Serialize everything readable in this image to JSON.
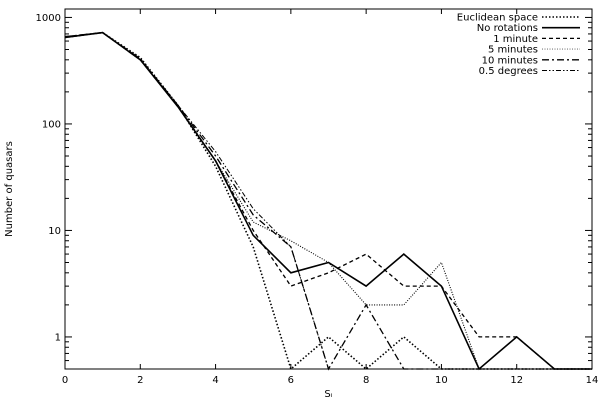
{
  "chart_data": {
    "type": "line",
    "xlabel": "Sᵢ",
    "ylabel": "Number of quasars",
    "x_ticks": [
      0,
      2,
      4,
      6,
      8,
      10,
      12,
      14
    ],
    "y_ticks": [
      1,
      10,
      100,
      1000
    ],
    "y_tick_labels": [
      "1",
      "10",
      "100",
      "1000"
    ],
    "xlim": [
      0,
      14
    ],
    "ylim": [
      0.5,
      1200
    ],
    "y_scale": "log",
    "legend_position": "top-right",
    "series": [
      {
        "name": "Euclidean space",
        "style": "dot-fine",
        "x": [
          0,
          1,
          2,
          3,
          4,
          5,
          6,
          7,
          8,
          9,
          10,
          11,
          12,
          13,
          14
        ],
        "y": [
          650,
          720,
          420,
          150,
          40,
          7,
          0.5,
          1,
          0.5,
          1,
          0.5,
          0.5,
          0.5,
          0.5,
          0.5
        ]
      },
      {
        "name": "No rotations",
        "style": "solid",
        "x": [
          0,
          1,
          2,
          3,
          4,
          5,
          6,
          7,
          8,
          9,
          10,
          11,
          12,
          13,
          14
        ],
        "y": [
          650,
          720,
          400,
          145,
          45,
          9,
          4,
          5,
          3,
          6,
          3,
          0.5,
          1,
          0.5,
          0.5
        ]
      },
      {
        "name": "1 minute",
        "style": "dash",
        "x": [
          0,
          1,
          2,
          3,
          4,
          5,
          6,
          7,
          8,
          9,
          10,
          11,
          12,
          13,
          14
        ],
        "y": [
          660,
          720,
          400,
          145,
          45,
          10,
          3,
          4,
          6,
          3,
          3,
          1,
          1,
          0.5,
          0.5
        ]
      },
      {
        "name": "5 minutes",
        "style": "dot-gray",
        "x": [
          0,
          1,
          2,
          3,
          4,
          5,
          6,
          7,
          8,
          9,
          10,
          11,
          12,
          13,
          14
        ],
        "y": [
          655,
          720,
          400,
          150,
          45,
          12,
          8,
          5,
          2,
          2,
          5,
          0.5,
          0.5,
          0.5,
          0.5
        ]
      },
      {
        "name": "10 minutes",
        "style": "dash-dot",
        "x": [
          0,
          1,
          2,
          3,
          4,
          5,
          6,
          7,
          8,
          9,
          10,
          11,
          12,
          13,
          14
        ],
        "y": [
          660,
          720,
          410,
          150,
          50,
          14,
          7,
          0.5,
          2,
          0.5,
          0.5,
          0.5,
          0.5,
          0.5,
          0.5
        ]
      },
      {
        "name": "0.5 degrees",
        "style": "dash-dot-dot",
        "x": [
          0,
          1,
          2,
          3,
          4,
          5,
          6,
          7,
          8,
          9,
          10,
          11,
          12,
          13,
          14
        ],
        "y": [
          650,
          720,
          410,
          150,
          55,
          16,
          7,
          0.5,
          0.5,
          0.5,
          0.5,
          0.5,
          0.5,
          0.5,
          0.5
        ]
      }
    ]
  }
}
